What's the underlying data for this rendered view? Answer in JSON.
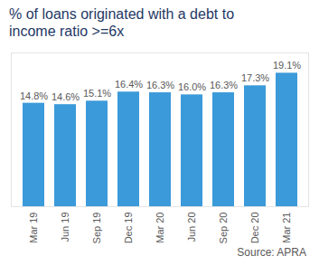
{
  "chart_data": {
    "type": "bar",
    "title": "% of loans originated with a debt to income ratio >=6x",
    "source": "Source: APRA",
    "categories": [
      "Mar 19",
      "Jun 19",
      "Sep 19",
      "Dec 19",
      "Mar 20",
      "Jun 20",
      "Sep 20",
      "Dec 20",
      "Mar 21"
    ],
    "values": [
      14.8,
      14.6,
      15.1,
      16.4,
      16.3,
      16.0,
      16.3,
      17.3,
      19.1
    ],
    "value_labels": [
      "14.8%",
      "14.6%",
      "15.1%",
      "16.4%",
      "16.3%",
      "16.0%",
      "16.3%",
      "17.3%",
      "19.1%"
    ],
    "color": "#3b9ad9",
    "ylim": [
      0,
      22
    ],
    "grid": false,
    "data_labels": true,
    "tick_labels": "x"
  }
}
